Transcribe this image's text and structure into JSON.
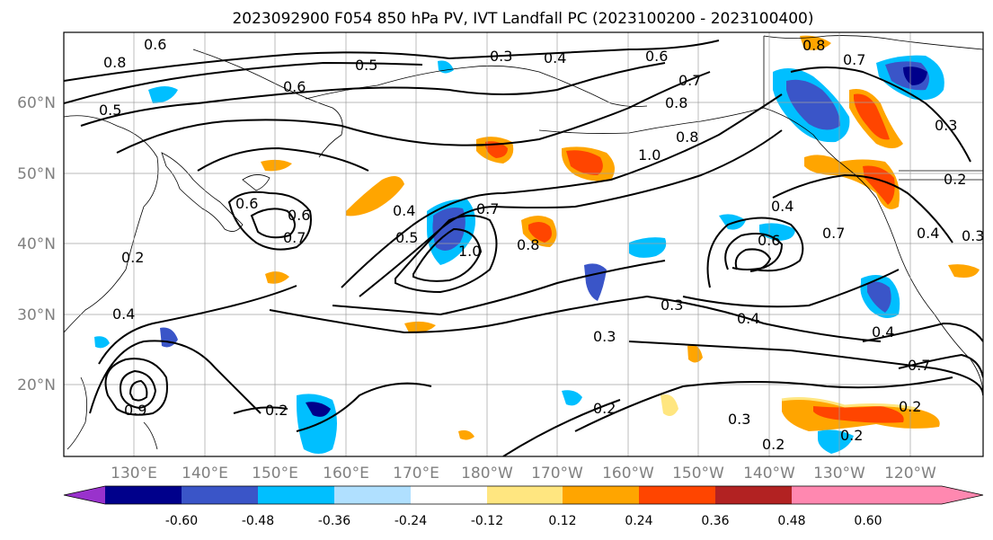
{
  "title": "2023092900 F054 850 hPa PV, IVT Landfall PC (2023100200 - 2023100400)",
  "lat_labels": [
    "60°N",
    "50°N",
    "40°N",
    "30°N",
    "20°N"
  ],
  "lon_labels": [
    "130°E",
    "140°E",
    "150°E",
    "160°E",
    "170°E",
    "180°W",
    "170°W",
    "160°W",
    "150°W",
    "140°W",
    "130°W",
    "120°W"
  ],
  "colorbar": {
    "ticks": [
      "-0.60",
      "-0.48",
      "-0.36",
      "-0.24",
      "-0.12",
      "0.12",
      "0.24",
      "0.36",
      "0.48",
      "0.60"
    ],
    "colors": [
      "#9932cc",
      "#00008b",
      "#3a55c8",
      "#00bfff",
      "#b0e0ff",
      "#ffffff",
      "#ffe680",
      "#ffa500",
      "#ff4500",
      "#b22222",
      "#ff88b0"
    ]
  },
  "contour_labels": [
    "0.5",
    "0.6",
    "0.5",
    "0.3",
    "0.4",
    "0.6",
    "0.7",
    "0.8",
    "0.8",
    "0.7",
    "0.8",
    "0.6",
    "0.6",
    "0.6",
    "0.7",
    "0.4",
    "0.5",
    "0.7",
    "1.0",
    "0.8",
    "1.0",
    "0.8",
    "0.4",
    "0.6",
    "0.7",
    "0.4",
    "0.4",
    "0.2",
    "0.4",
    "0.3",
    "0.3",
    "0.4",
    "0.7",
    "0.2",
    "0.2",
    "0.3",
    "0.2",
    "0.2",
    "0.9",
    "0.2",
    "0.3",
    "0.2",
    "0.3"
  ],
  "map_features": {
    "shading_colors": {
      "neg_strong": "#3a55c8",
      "neg_mid": "#00bfff",
      "neg_weak": "#b0e0ff",
      "neg_deep": "#00008b",
      "pos_weak": "#ffe680",
      "pos_mid": "#ffa500",
      "pos_strong": "#ff4500",
      "pos_deep": "#b22222"
    }
  }
}
